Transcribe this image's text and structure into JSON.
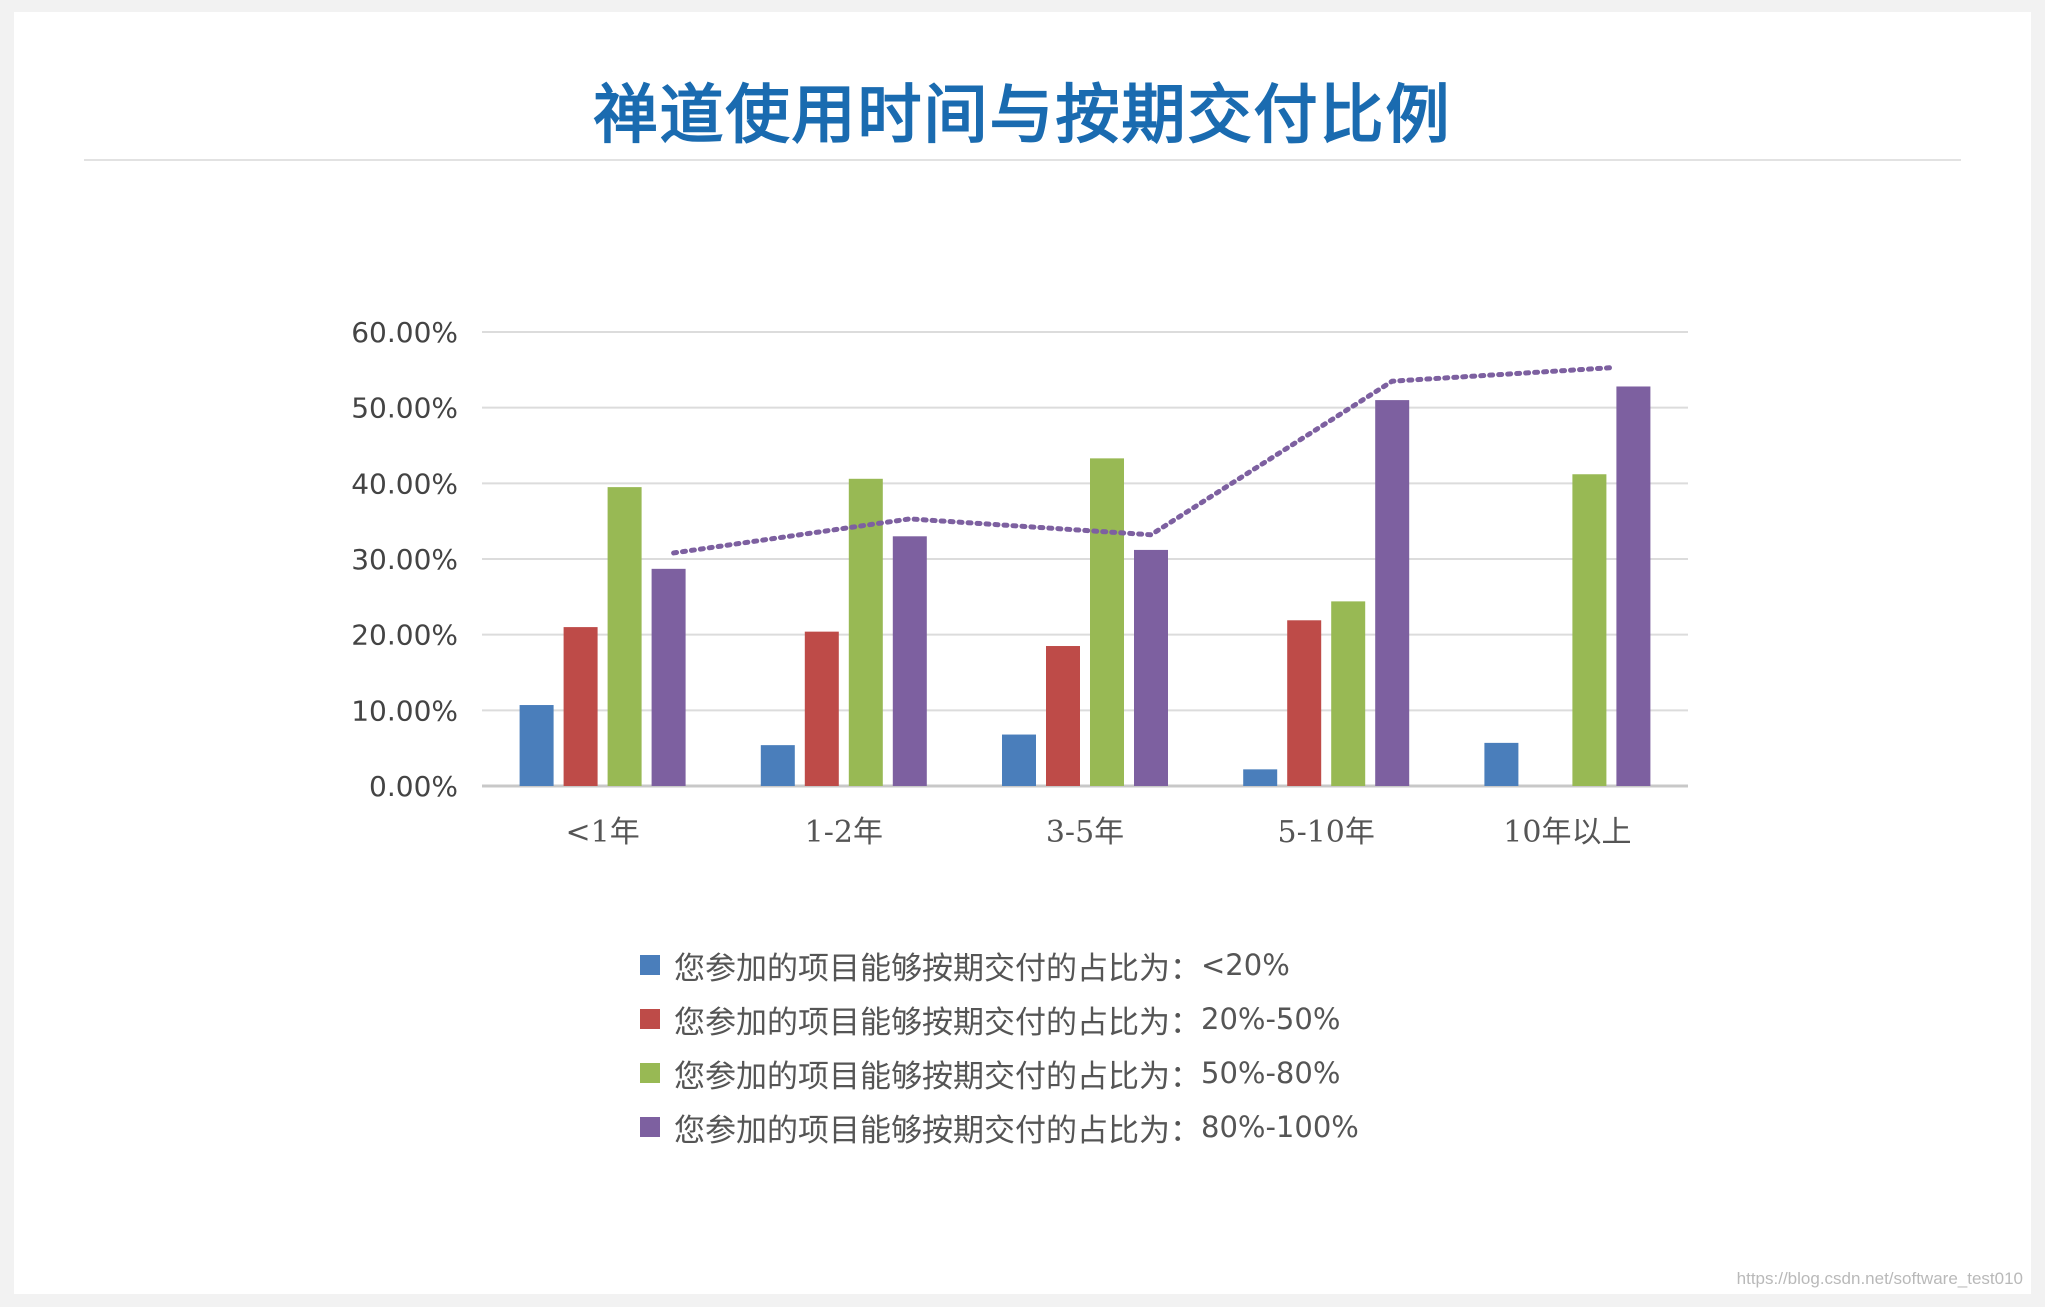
{
  "title": "禅道使用时间与按期交付比例",
  "watermark": "https://blog.csdn.net/software_test010",
  "chart_data": {
    "type": "bar",
    "categories": [
      "<1年",
      "1-2年",
      "3-5年",
      "5-10年",
      "10年以上"
    ],
    "ylim": [
      0,
      60
    ],
    "yticks": [
      "0.00%",
      "10.00%",
      "20.00%",
      "30.00%",
      "40.00%",
      "50.00%",
      "60.00%"
    ],
    "grid": true,
    "legend_position": "bottom",
    "series": [
      {
        "name": "您参加的项目能够按期交付的占比为：<20%",
        "label_prefix": "您参加的项目能够按期交付的占比为：",
        "label_range": "<20%",
        "color": "#4a7ebb",
        "values": [
          10.7,
          5.4,
          6.8,
          2.2,
          5.7
        ]
      },
      {
        "name": "您参加的项目能够按期交付的占比为：20%-50%",
        "label_prefix": "您参加的项目能够按期交付的占比为：",
        "label_range": "20%-50%",
        "color": "#be4b48",
        "values": [
          21.0,
          20.4,
          18.5,
          21.9,
          0
        ]
      },
      {
        "name": "您参加的项目能够按期交付的占比为：50%-80%",
        "label_prefix": "您参加的项目能够按期交付的占比为：",
        "label_range": "50%-80%",
        "color": "#98b954",
        "values": [
          39.5,
          40.6,
          43.3,
          24.4,
          41.2
        ]
      },
      {
        "name": "您参加的项目能够按期交付的占比为：80%-100%",
        "label_prefix": "您参加的项目能够按期交付的占比为：",
        "label_range": "80%-100%",
        "color": "#7d60a0",
        "values": [
          28.7,
          33.0,
          31.2,
          51.0,
          52.8
        ]
      }
    ],
    "trendline": {
      "color": "#7d60a0",
      "style": "dotted",
      "values": [
        30.8,
        35.3,
        33.2,
        53.5,
        55.3
      ]
    }
  }
}
